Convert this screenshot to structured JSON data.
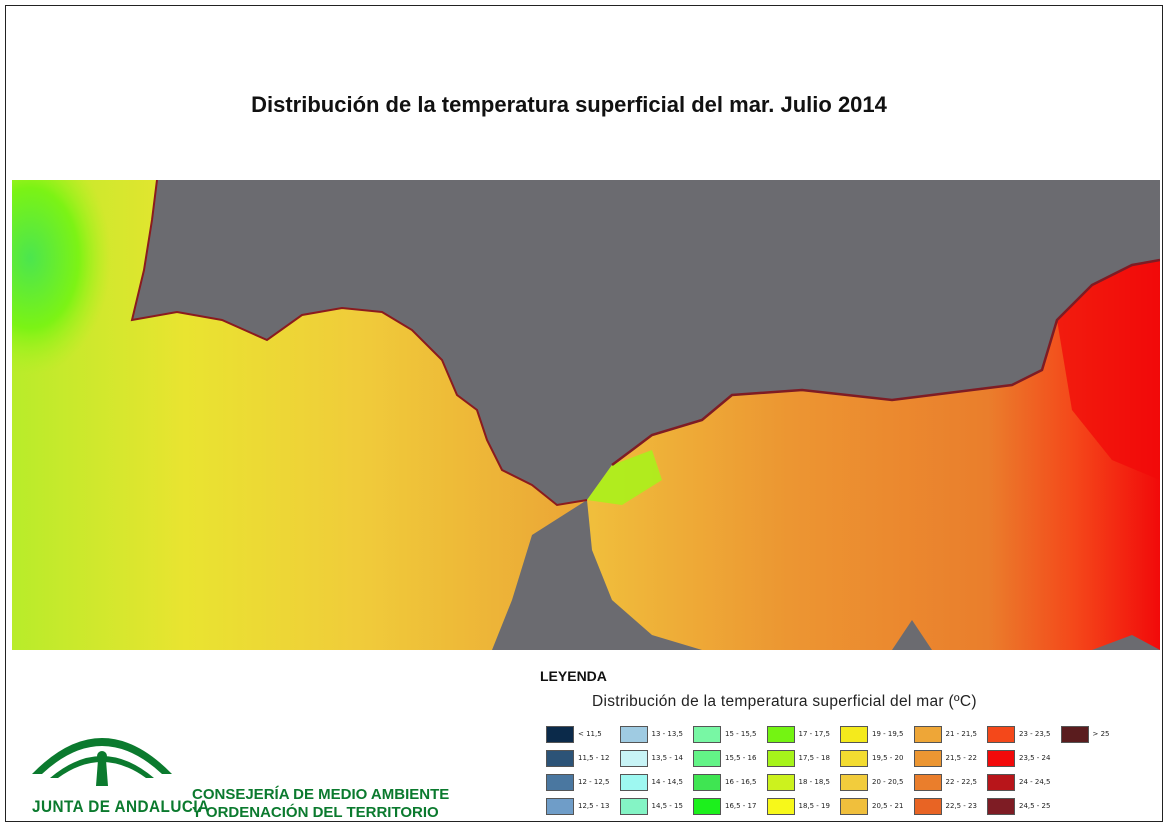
{
  "title": "Distribución de la temperatura superficial del mar. Julio 2014",
  "legend": {
    "heading": "LEYENDA",
    "subtitle": "Distribución de la temperatura superficial del mar (ºC)",
    "items": [
      {
        "label": "< 11,5",
        "color": "#0b2a4a"
      },
      {
        "label": "11,5 - 12",
        "color": "#2c5377"
      },
      {
        "label": "12 - 12,5",
        "color": "#4a77a0"
      },
      {
        "label": "12,5 - 13",
        "color": "#6f9dc8"
      },
      {
        "label": "13 - 13,5",
        "color": "#9fcbe2"
      },
      {
        "label": "13,5 - 14",
        "color": "#c8f4f6"
      },
      {
        "label": "14 - 14,5",
        "color": "#9ef8f1"
      },
      {
        "label": "14,5 - 15",
        "color": "#84f4c5"
      },
      {
        "label": "15 - 15,5",
        "color": "#78f7a4"
      },
      {
        "label": "15,5 - 16",
        "color": "#63f487"
      },
      {
        "label": "16 - 16,5",
        "color": "#3fe552"
      },
      {
        "label": "16,5 - 17",
        "color": "#1cf01c"
      },
      {
        "label": "17 - 17,5",
        "color": "#74f412"
      },
      {
        "label": "17,5 - 18",
        "color": "#a6f41a"
      },
      {
        "label": "18 - 18,5",
        "color": "#ccf21e"
      },
      {
        "label": "18,5 - 19",
        "color": "#f7f81a"
      },
      {
        "label": "19 - 19,5",
        "color": "#f4ea1c"
      },
      {
        "label": "19,5 - 20",
        "color": "#f3dc30"
      },
      {
        "label": "20 - 20,5",
        "color": "#f2cc3c"
      },
      {
        "label": "20,5 - 21",
        "color": "#f0bf3c"
      },
      {
        "label": "21 - 21,5",
        "color": "#eea637"
      },
      {
        "label": "21,5 - 22",
        "color": "#ec9632"
      },
      {
        "label": "22 - 22,5",
        "color": "#ea7e2c"
      },
      {
        "label": "22,5 - 23",
        "color": "#e86424"
      },
      {
        "label": "23 - 23,5",
        "color": "#f4481a"
      },
      {
        "label": "23,5 - 24",
        "color": "#f20a0a"
      },
      {
        "label": "24 - 24,5",
        "color": "#b8151a"
      },
      {
        "label": "24,5 - 25",
        "color": "#7e1c24"
      },
      {
        "label": "> 25",
        "color": "#5a1c1e"
      }
    ]
  },
  "logo": {
    "text": "JUNTA DE ANDALUCIA",
    "color": "#0b7a2e"
  },
  "org": {
    "line1": "CONSEJERÍA DE MEDIO AMBIENTE",
    "line2": "Y ORDENACIÓN DEL TERRITORIO"
  },
  "map": {
    "land_color": "#6b6b70"
  }
}
